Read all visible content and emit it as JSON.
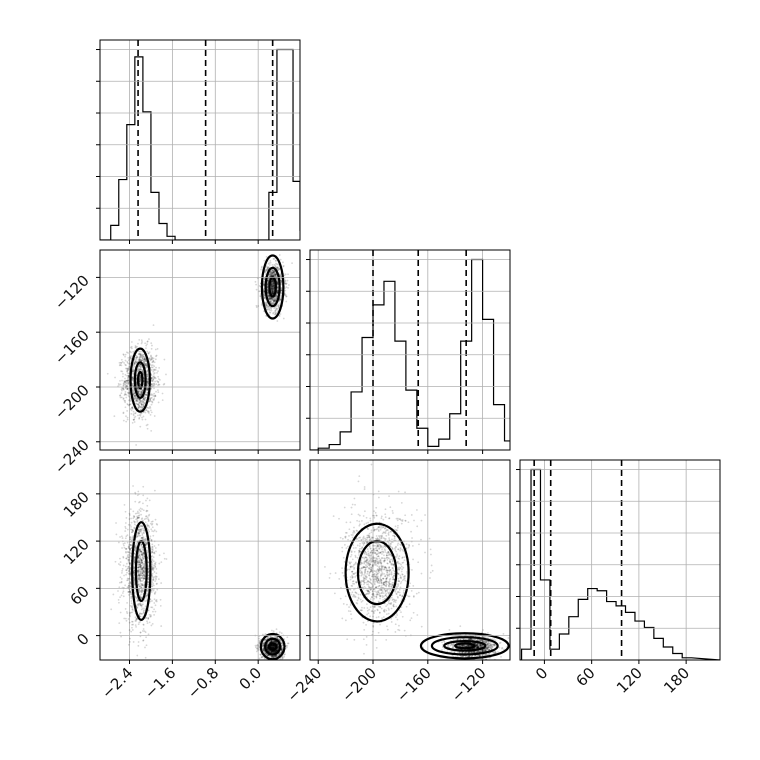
{
  "chart_data": {
    "type": "corner",
    "parameters": [
      "p0",
      "p1",
      "p2"
    ],
    "colors": {
      "line": "#000000",
      "grid": "#b0b0b0",
      "samples": "#000000"
    },
    "grid": true,
    "axes": {
      "p0": {
        "range": [
          -2.95,
          0.78
        ],
        "ticks": [
          -2.4,
          -1.6,
          -0.8,
          0.0
        ],
        "tick_labels": [
          "−2.4",
          "−1.6",
          "−0.8",
          "0.0"
        ]
      },
      "p1": {
        "range": [
          -246,
          -100
        ],
        "ticks": [
          -240,
          -200,
          -160,
          -120
        ],
        "tick_labels": [
          "−240",
          "−200",
          "−160",
          "−120"
        ]
      },
      "p2": {
        "range": [
          -31,
          223
        ],
        "ticks": [
          0,
          60,
          120,
          180
        ],
        "tick_labels": [
          "0",
          "60",
          "120",
          "180"
        ]
      }
    },
    "marginals": [
      {
        "param": "p0",
        "bin_edges": [
          -2.9,
          -2.75,
          -2.6,
          -2.45,
          -2.3,
          -2.15,
          -2.0,
          -1.85,
          -1.7,
          -1.55,
          -1.4,
          0.05,
          0.2,
          0.35,
          0.5,
          0.65,
          0.78
        ],
        "counts": [
          0.0,
          0.8,
          3.3,
          6.3,
          10.0,
          7.0,
          2.6,
          0.9,
          0.2,
          0.0,
          0.0,
          0.0,
          2.6,
          10.4,
          10.4,
          3.2,
          0.5
        ],
        "quantiles": [
          -2.24,
          -0.98,
          0.27
        ]
      },
      {
        "param": "p1",
        "bin_edges": [
          -240,
          -232,
          -224,
          -216,
          -208,
          -200,
          -192,
          -184,
          -176,
          -168,
          -160,
          -152,
          -144,
          -136,
          -128,
          -120,
          -112,
          -104,
          -98
        ],
        "counts": [
          0.1,
          0.3,
          1.0,
          3.2,
          6.2,
          8.0,
          9.3,
          6.0,
          3.3,
          1.2,
          0.2,
          0.6,
          2.0,
          6.0,
          10.5,
          7.2,
          2.5,
          0.5
        ],
        "quantiles": [
          -200,
          -167,
          -132
        ]
      },
      {
        "param": "p2",
        "bin_edges": [
          -29,
          -17,
          -5,
          7,
          19,
          31,
          43,
          55,
          67,
          79,
          91,
          103,
          115,
          127,
          139,
          151,
          163,
          175,
          187
        ],
        "counts": [
          0.5,
          8.8,
          3.7,
          0.5,
          1.2,
          2.0,
          2.8,
          3.3,
          3.2,
          2.7,
          2.5,
          2.2,
          1.8,
          1.5,
          1.0,
          0.6,
          0.3,
          0.1
        ],
        "quantiles": [
          -13,
          8,
          98
        ]
      }
    ],
    "joint_modes": [
      {
        "mean": [
          -2.2,
          -196,
          85
        ],
        "sd": [
          0.15,
          12,
          35
        ]
      },
      {
        "mean": [
          0.27,
          -127,
          -15
        ],
        "sd": [
          0.1,
          8,
          7
        ]
      }
    ],
    "contours": [
      {
        "x": "p0",
        "y": "p1",
        "mode": 0,
        "center": [
          -2.2,
          -195
        ],
        "semi_axes": [
          [
            0.18,
            23
          ],
          [
            0.1,
            13
          ],
          [
            0.04,
            6
          ]
        ]
      },
      {
        "x": "p0",
        "y": "p1",
        "mode": 1,
        "center": [
          0.27,
          -127
        ],
        "semi_axes": [
          [
            0.2,
            23
          ],
          [
            0.13,
            14
          ],
          [
            0.06,
            7
          ]
        ]
      },
      {
        "x": "p0",
        "y": "p2",
        "mode": 0,
        "center": [
          -2.18,
          82
        ],
        "semi_axes": [
          [
            0.17,
            62
          ],
          [
            0.1,
            38
          ]
        ]
      },
      {
        "x": "p0",
        "y": "p2",
        "mode": 1,
        "center": [
          0.27,
          -14
        ],
        "semi_axes": [
          [
            0.22,
            16
          ],
          [
            0.14,
            10
          ],
          [
            0.07,
            4
          ]
        ]
      },
      {
        "x": "p1",
        "y": "p2",
        "mode": 0,
        "center": [
          -197,
          80
        ],
        "semi_axes": [
          [
            23,
            62
          ],
          [
            14,
            40
          ]
        ]
      },
      {
        "x": "p1",
        "y": "p2",
        "mode": 1,
        "center": [
          -133,
          -13
        ],
        "semi_axes": [
          [
            32,
            16
          ],
          [
            24,
            11
          ],
          [
            15,
            6
          ],
          [
            7,
            3
          ]
        ]
      }
    ]
  }
}
